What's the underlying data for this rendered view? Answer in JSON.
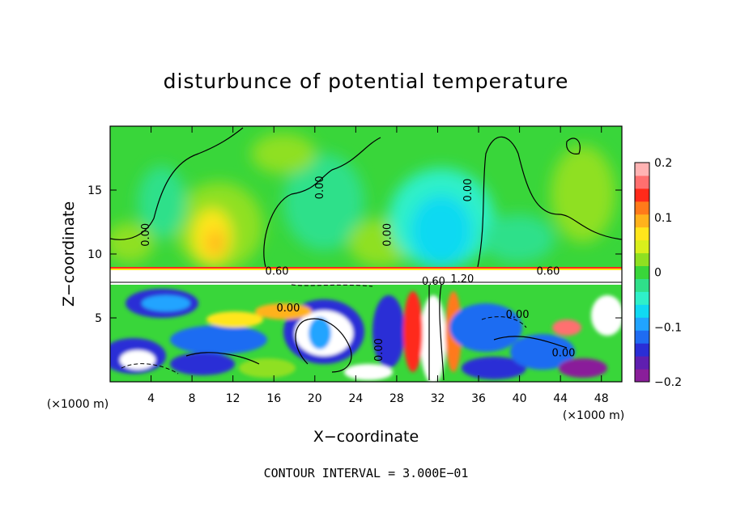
{
  "chart_data": {
    "type": "heatmap",
    "title": "disturbunce of potential temperature",
    "xlabel": "X−coordinate",
    "ylabel": "Z−coordinate",
    "x_unit_left": "(×1000 m)",
    "x_unit_right": "(×1000 m)",
    "footnote": "CONTOUR INTERVAL = 3.000E−01",
    "xlim": [
      0,
      50
    ],
    "ylim": [
      0,
      20
    ],
    "x_ticks": [
      4,
      8,
      12,
      16,
      20,
      24,
      28,
      32,
      36,
      40,
      44,
      48
    ],
    "y_ticks": [
      5,
      10,
      15
    ],
    "colorbar": {
      "range": [
        -0.2,
        0.2
      ],
      "ticks": [
        {
          "value": 0.2,
          "label": "0.2"
        },
        {
          "value": 0.1,
          "label": "0.1"
        },
        {
          "value": 0.0,
          "label": "0"
        },
        {
          "value": -0.1,
          "label": "−0.1"
        },
        {
          "value": -0.2,
          "label": "−0.2"
        }
      ],
      "colors": [
        "#8a1e9a",
        "#5f1fb0",
        "#2a2ed6",
        "#1f6cf2",
        "#21a4ff",
        "#10d9f2",
        "#2ff0c9",
        "#2fe08a",
        "#39d63a",
        "#8fe021",
        "#d9ef1c",
        "#ffe61c",
        "#ffb21c",
        "#ff7a1a",
        "#ff2a1a",
        "#ff6f6f",
        "#ffb3b3"
      ]
    },
    "contour_labels": [
      {
        "text": "0.00",
        "x": 3.8,
        "y": 11.5,
        "rotate": -90
      },
      {
        "text": "0.00",
        "x": 20.8,
        "y": 15.2,
        "rotate": -90
      },
      {
        "text": "0.00",
        "x": 27.4,
        "y": 11.5,
        "rotate": -90
      },
      {
        "text": "0.00",
        "x": 35.3,
        "y": 15.0,
        "rotate": -90
      },
      {
        "text": "0.60",
        "x": 16.3,
        "y": 8.4,
        "rotate": 0
      },
      {
        "text": "0.60",
        "x": 42.8,
        "y": 8.4,
        "rotate": 0
      },
      {
        "text": "0.60",
        "x": 31.6,
        "y": 7.6,
        "rotate": 0
      },
      {
        "text": "1.20",
        "x": 34.4,
        "y": 7.8,
        "rotate": 0
      },
      {
        "text": "0.00",
        "x": 17.4,
        "y": 5.5,
        "rotate": 0
      },
      {
        "text": "0.00",
        "x": 39.8,
        "y": 5.0,
        "rotate": 0
      },
      {
        "text": "0.00",
        "x": 44.3,
        "y": 2.0,
        "rotate": 0
      },
      {
        "text": "0.00",
        "x": 26.6,
        "y": 2.5,
        "rotate": -90
      }
    ]
  }
}
